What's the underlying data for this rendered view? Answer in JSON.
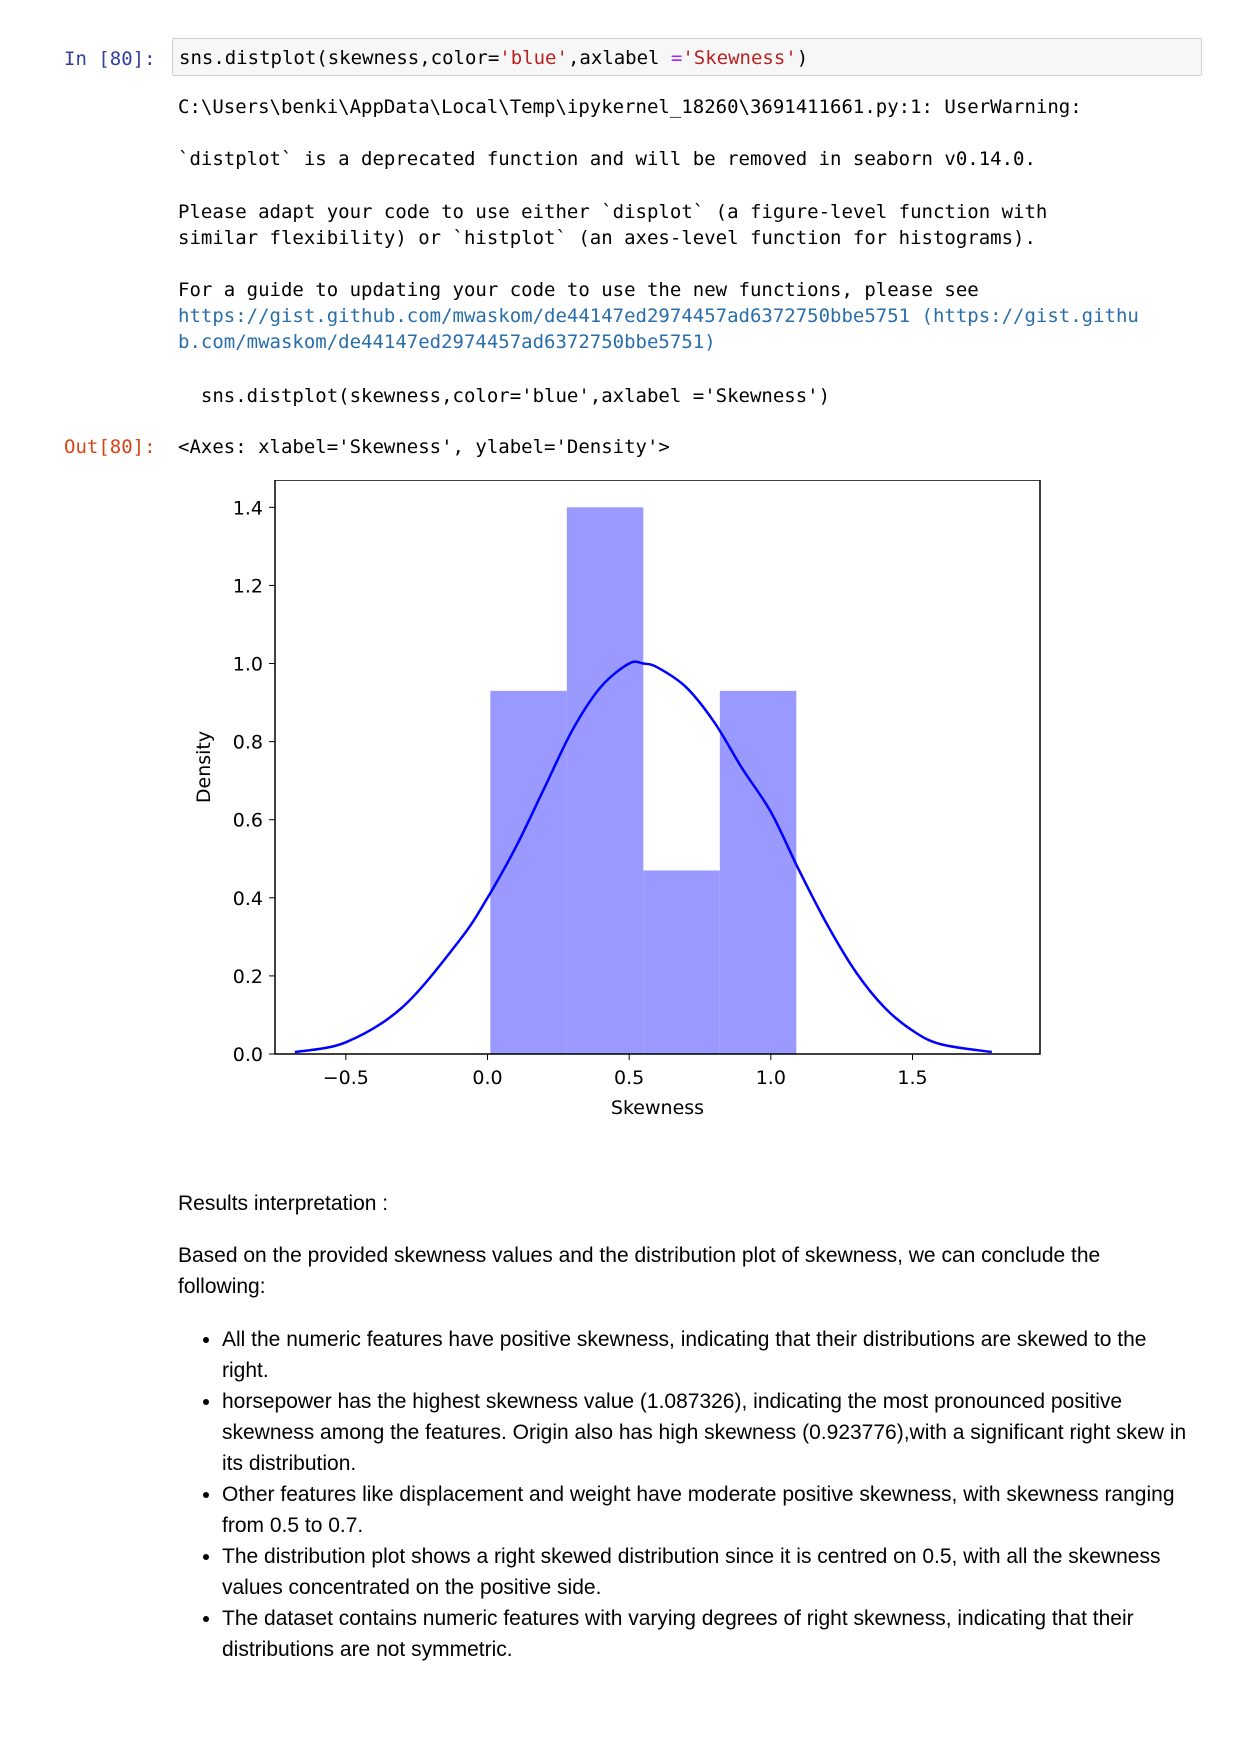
{
  "input_cell": {
    "prompt": "In [80]:",
    "code_parts": [
      "sns.distplot(skewness,color=",
      "'blue'",
      ",axlabel ",
      "=",
      "'Skewness'",
      ")"
    ]
  },
  "stderr": {
    "line1": "C:\\Users\\benki\\AppData\\Local\\Temp\\ipykernel_18260\\3691411661.py:1: UserWarning:",
    "line2": "`distplot` is a deprecated function and will be removed in seaborn v0.14.0.",
    "line3": "Please adapt your code to use either `displot` (a figure-level function with",
    "line4": "similar flexibility) or `histplot` (an axes-level function for histograms).",
    "line5": "For a guide to updating your code to use the new functions, please see",
    "link1": "https://gist.github.com/mwaskom/de44147ed2974457ad6372750bbe5751 (https://gist.githu",
    "link2": "b.com/mwaskom/de44147ed2974457ad6372750bbe5751)",
    "echo": "  sns.distplot(skewness,color='blue',axlabel ='Skewness')"
  },
  "output_cell": {
    "prompt": "Out[80]:",
    "text": "<Axes: xlabel='Skewness', ylabel='Density'>"
  },
  "chart_data": {
    "type": "bar",
    "xlabel": "Skewness",
    "ylabel": "Density",
    "xlim": [
      -0.75,
      1.95
    ],
    "ylim": [
      0.0,
      1.4
    ],
    "xticks": [
      "−0.5",
      "0.0",
      "0.5",
      "1.0",
      "1.5"
    ],
    "xtick_values": [
      -0.5,
      0.0,
      0.5,
      1.0,
      1.5
    ],
    "yticks": [
      "0.0",
      "0.2",
      "0.4",
      "0.6",
      "0.8",
      "1.0",
      "1.2",
      "1.4"
    ],
    "ytick_values": [
      0.0,
      0.2,
      0.4,
      0.6,
      0.8,
      1.0,
      1.2,
      1.4
    ],
    "histogram": {
      "bin_edges": [
        0.01,
        0.28,
        0.55,
        0.82,
        1.09
      ],
      "density": [
        0.93,
        1.4,
        0.47,
        0.93
      ],
      "color": "#9999ff"
    },
    "kde": {
      "color": "#0000ff",
      "x": [
        -0.68,
        -0.5,
        -0.3,
        -0.1,
        0.0,
        0.1,
        0.2,
        0.3,
        0.4,
        0.5,
        0.55,
        0.6,
        0.7,
        0.8,
        0.9,
        1.0,
        1.1,
        1.2,
        1.3,
        1.4,
        1.5,
        1.6,
        1.78
      ],
      "y": [
        0.005,
        0.03,
        0.12,
        0.29,
        0.4,
        0.53,
        0.68,
        0.83,
        0.94,
        1.0,
        1.0,
        0.99,
        0.94,
        0.85,
        0.73,
        0.62,
        0.47,
        0.33,
        0.21,
        0.12,
        0.06,
        0.025,
        0.005
      ]
    }
  },
  "markdown": {
    "heading": "Results interpretation :",
    "intro": "Based on the provided skewness values and the distribution plot of skewness, we can conclude the following:",
    "bullets": [
      "All the numeric features have positive skewness, indicating that their distributions are skewed to the right.",
      "horsepower has the highest skewness value (1.087326), indicating the most pronounced positive skewness among the features. Origin also has high skewness (0.923776),with a significant right skew in its distribution.",
      "Other features like displacement and weight have moderate positive skewness, with skewness ranging from 0.5 to 0.7.",
      "The distribution plot shows a right skewed distribution since it is centred on 0.5, with all the skewness values concentrated on the positive side.",
      "The dataset contains numeric features with varying degrees of right skewness, indicating that their distributions are not symmetric."
    ]
  }
}
